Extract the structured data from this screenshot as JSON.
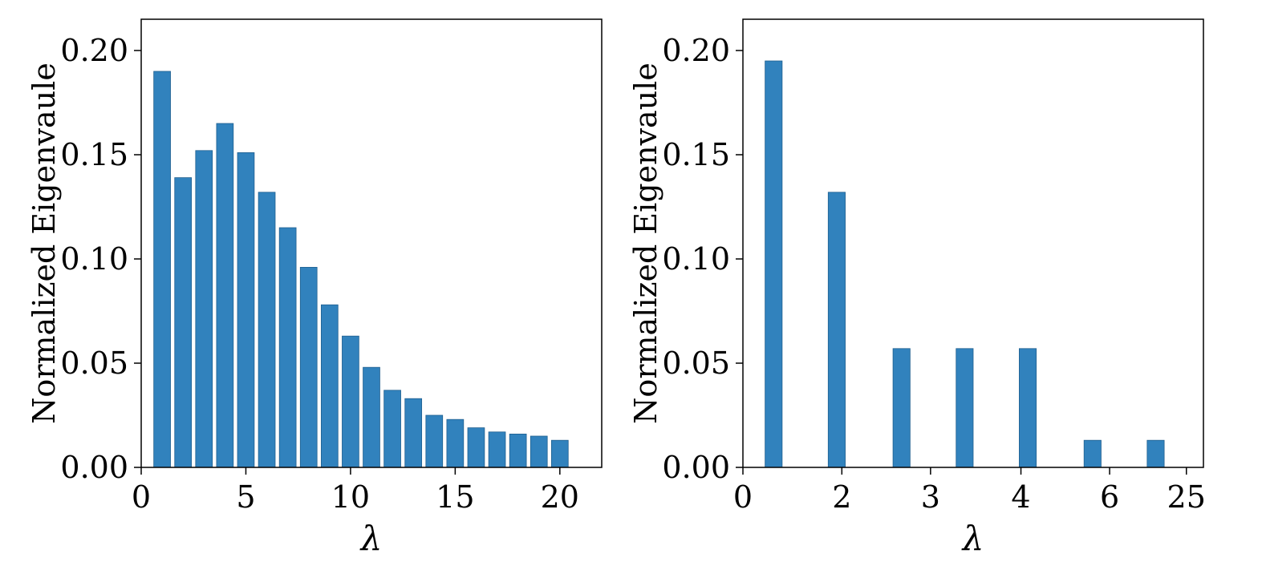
{
  "chart_data": [
    {
      "type": "bar",
      "xlabel": "λ",
      "ylabel": "Normalized Eigenvaule",
      "xlim": [
        0,
        22
      ],
      "ylim": [
        0,
        0.215
      ],
      "xticks": [
        0,
        5,
        10,
        15,
        20
      ],
      "xtick_labels": [
        "0",
        "5",
        "10",
        "15",
        "20"
      ],
      "yticks": [
        0.0,
        0.05,
        0.1,
        0.15,
        0.2
      ],
      "ytick_labels": [
        "0.00",
        "0.05",
        "0.10",
        "0.15",
        "0.20"
      ],
      "bar_color": "#3182bd",
      "bar_width": 0.8,
      "x": [
        1,
        2,
        3,
        4,
        5,
        6,
        7,
        8,
        9,
        10,
        11,
        12,
        13,
        14,
        15,
        16,
        17,
        18,
        19,
        20
      ],
      "values": [
        0.19,
        0.139,
        0.152,
        0.165,
        0.151,
        0.132,
        0.115,
        0.096,
        0.078,
        0.063,
        0.048,
        0.037,
        0.033,
        0.025,
        0.023,
        0.019,
        0.017,
        0.016,
        0.015,
        0.013
      ],
      "grid": false
    },
    {
      "type": "bar",
      "xlabel": "λ",
      "ylabel": "Normalized Eigenvaule",
      "xlim": [
        0,
        27
      ],
      "ylim": [
        0,
        0.215
      ],
      "xticks": [
        0,
        5.8,
        11,
        16.3,
        21.5,
        26
      ],
      "xtick_labels": [
        "0",
        "2",
        "3",
        "4",
        "6",
        "25"
      ],
      "yticks": [
        0.0,
        0.05,
        0.1,
        0.15,
        0.2
      ],
      "ytick_labels": [
        "0.00",
        "0.05",
        "0.10",
        "0.15",
        "0.20"
      ],
      "bar_color": "#3182bd",
      "bar_width": 1.0,
      "x": [
        1.8,
        5.5,
        9.3,
        13.0,
        16.7,
        20.5,
        24.2
      ],
      "values": [
        0.195,
        0.132,
        0.057,
        0.057,
        0.057,
        0.013,
        0.013
      ],
      "grid": false
    }
  ]
}
